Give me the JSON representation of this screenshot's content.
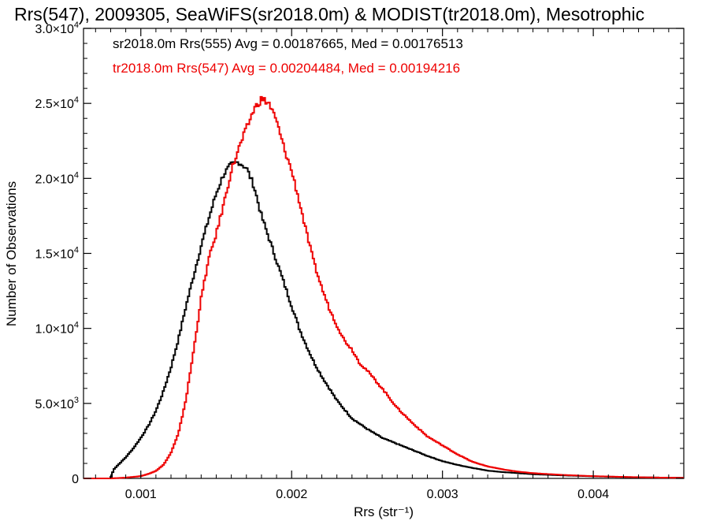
{
  "chart_data": {
    "type": "line",
    "title": "Rrs(547), 2009305, SeaWiFS(sr2018.0m) & MODIST(tr2018.0m), Mesotrophic",
    "xlabel": "Rrs (str⁻¹)",
    "ylabel": "Number of Observations",
    "xlim": [
      0.00062,
      0.0046
    ],
    "ylim": [
      0,
      30000
    ],
    "grid": false,
    "xticks": [
      0.001,
      0.002,
      0.003,
      0.004
    ],
    "xtick_labels": [
      "0.001",
      "0.002",
      "0.003",
      "0.004"
    ],
    "yticks": [
      0,
      5000,
      10000,
      15000,
      20000,
      25000,
      30000
    ],
    "ytick_labels": [
      {
        "mantissa": "0",
        "exp": ""
      },
      {
        "mantissa": "5.0×10",
        "exp": "3"
      },
      {
        "mantissa": "1.0×10",
        "exp": "4"
      },
      {
        "mantissa": "1.5×10",
        "exp": "4"
      },
      {
        "mantissa": "2.0×10",
        "exp": "4"
      },
      {
        "mantissa": "2.5×10",
        "exp": "4"
      },
      {
        "mantissa": "3.0×10",
        "exp": "4"
      }
    ],
    "annotations": [
      {
        "text": "sr2018.0m Rrs(555) Avg = 0.00187665, Med = 0.00176513",
        "color": "#000000"
      },
      {
        "text": "tr2018.0m Rrs(547) Avg = 0.00204484, Med = 0.00194216",
        "color": "#ee0000"
      }
    ],
    "series": [
      {
        "color": "#000000",
        "x": [
          0.00062,
          0.0008,
          0.00082,
          0.00085,
          0.0009,
          0.00095,
          0.001,
          0.00105,
          0.0011,
          0.00115,
          0.0012,
          0.00125,
          0.0013,
          0.00135,
          0.0014,
          0.00145,
          0.0015,
          0.00155,
          0.0016,
          0.00165,
          0.0017,
          0.00175,
          0.0018,
          0.00185,
          0.0019,
          0.00195,
          0.002,
          0.00205,
          0.0021,
          0.00215,
          0.0022,
          0.00225,
          0.0023,
          0.0024,
          0.0025,
          0.0026,
          0.0027,
          0.0028,
          0.0029,
          0.003,
          0.0031,
          0.0032,
          0.0033,
          0.0034,
          0.0035,
          0.0036,
          0.0038,
          0.004,
          0.0042,
          0.0044,
          0.0046
        ],
        "y": [
          0,
          0,
          600,
          900,
          1400,
          2000,
          2700,
          3500,
          4500,
          5800,
          7400,
          9300,
          11500,
          13500,
          15500,
          17300,
          19000,
          20300,
          20900,
          21100,
          20700,
          19500,
          17500,
          16000,
          14500,
          13000,
          11500,
          10000,
          8800,
          7700,
          6800,
          6000,
          5200,
          4000,
          3300,
          2700,
          2300,
          1900,
          1500,
          1150,
          900,
          700,
          520,
          420,
          350,
          280,
          200,
          140,
          90,
          60,
          40
        ]
      },
      {
        "color": "#ee0000",
        "x": [
          0.00062,
          0.0008,
          0.0009,
          0.001,
          0.00105,
          0.0011,
          0.00115,
          0.0012,
          0.00125,
          0.0013,
          0.00135,
          0.0014,
          0.00145,
          0.0015,
          0.00155,
          0.0016,
          0.00165,
          0.0017,
          0.00175,
          0.0018,
          0.00185,
          0.0019,
          0.00195,
          0.002,
          0.00205,
          0.0021,
          0.00215,
          0.0022,
          0.00225,
          0.0023,
          0.00235,
          0.0024,
          0.00245,
          0.0025,
          0.0026,
          0.0027,
          0.0028,
          0.0029,
          0.003,
          0.0031,
          0.0032,
          0.0033,
          0.0034,
          0.0035,
          0.0036,
          0.0038,
          0.004,
          0.0042,
          0.0044,
          0.0046
        ],
        "y": [
          0,
          0,
          50,
          150,
          300,
          500,
          900,
          1700,
          3000,
          5300,
          8500,
          12000,
          14600,
          16300,
          18300,
          20500,
          22000,
          23300,
          24600,
          25300,
          25000,
          23800,
          22000,
          20500,
          18500,
          16300,
          14300,
          12700,
          11300,
          10200,
          9200,
          8600,
          7700,
          7200,
          6000,
          4700,
          3700,
          2800,
          2200,
          1600,
          1100,
          800,
          600,
          450,
          350,
          230,
          150,
          100,
          60,
          40
        ]
      }
    ]
  }
}
